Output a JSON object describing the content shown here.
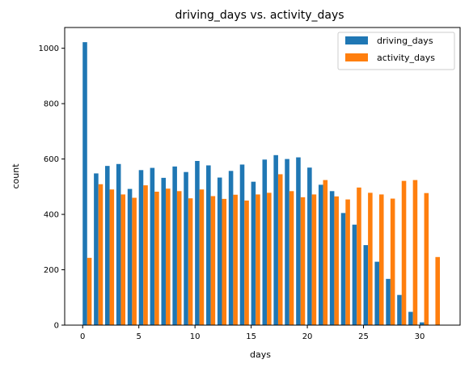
{
  "chart_data": {
    "type": "bar",
    "title": "driving_days vs. activity_days",
    "xlabel": "days",
    "ylabel": "count",
    "xlim": [
      -1.6,
      33.6
    ],
    "ylim": [
      0,
      1075
    ],
    "xticks": [
      0,
      5,
      10,
      15,
      20,
      25,
      30
    ],
    "yticks": [
      0,
      200,
      400,
      600,
      800,
      1000
    ],
    "grid": false,
    "legend_position": "top-right",
    "bins": [
      0,
      1,
      2,
      3,
      4,
      5,
      6,
      7,
      8,
      9,
      10,
      11,
      12,
      13,
      14,
      15,
      16,
      17,
      18,
      19,
      20,
      21,
      22,
      23,
      24,
      25,
      26,
      27,
      28,
      29,
      30,
      31
    ],
    "series": [
      {
        "name": "driving_days",
        "color": "#1f77b4",
        "values": [
          1022,
          548,
          575,
          582,
          492,
          560,
          568,
          532,
          573,
          553,
          593,
          577,
          533,
          557,
          580,
          518,
          598,
          614,
          600,
          606,
          569,
          507,
          484,
          405,
          363,
          289,
          229,
          167,
          109,
          48,
          10,
          0
        ]
      },
      {
        "name": "activity_days",
        "color": "#ff7f0e",
        "values": [
          243,
          509,
          490,
          472,
          460,
          505,
          482,
          493,
          484,
          458,
          490,
          466,
          456,
          471,
          450,
          472,
          478,
          545,
          484,
          462,
          472,
          524,
          465,
          454,
          497,
          478,
          472,
          457,
          521,
          524,
          477,
          246
        ]
      }
    ]
  }
}
